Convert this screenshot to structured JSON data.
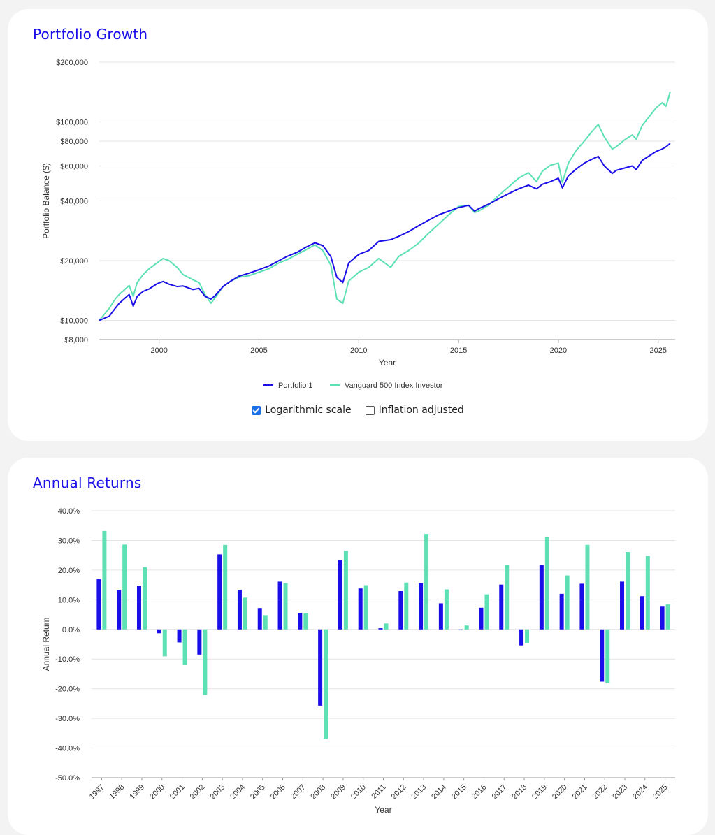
{
  "growth": {
    "title": "Portfolio Growth",
    "options": {
      "log_scale_label": "Logarithmic scale",
      "log_scale_checked": true,
      "inflation_label": "Inflation adjusted",
      "inflation_checked": false
    }
  },
  "returns": {
    "title": "Annual Returns"
  },
  "colors": {
    "portfolio": "#1a0fe8",
    "benchmark": "#5ee0b5",
    "title": "#1a0fe8",
    "checkbox": "#1a6fe8"
  },
  "chart_data": [
    {
      "type": "line",
      "ylabel": "Portfolio Balance ($)",
      "xlabel": "Year",
      "yscale": "log",
      "ylim": [
        8000,
        200000
      ],
      "xlim": [
        1997.0,
        2025.85
      ],
      "y_ticks": [
        "$8,000",
        "$10,000",
        "$20,000",
        "$40,000",
        "$60,000",
        "$80,000",
        "$100,000",
        "$200,000"
      ],
      "y_tick_values": [
        8000,
        10000,
        20000,
        40000,
        60000,
        80000,
        100000,
        200000
      ],
      "x_ticks": [
        "2000",
        "2005",
        "2010",
        "2015",
        "2020",
        "2025"
      ],
      "x_tick_values": [
        2000,
        2005,
        2010,
        2015,
        2020,
        2025
      ],
      "legend": "bottom-center",
      "grid": true,
      "series": [
        {
          "name": "Portfolio 1",
          "x": [
            1997.0,
            1997.5,
            1997.8,
            1998.0,
            1998.5,
            1998.7,
            1998.9,
            1999.2,
            1999.5,
            1999.9,
            2000.2,
            2000.5,
            2000.9,
            2001.2,
            2001.7,
            2002.0,
            2002.3,
            2002.6,
            2002.8,
            2003.2,
            2003.6,
            2004.0,
            2004.5,
            2005.0,
            2005.5,
            2006.0,
            2006.4,
            2006.9,
            2007.4,
            2007.8,
            2008.2,
            2008.6,
            2008.9,
            2009.2,
            2009.5,
            2010.0,
            2010.5,
            2011.0,
            2011.6,
            2012.0,
            2012.5,
            2013.0,
            2013.5,
            2014.0,
            2014.5,
            2015.0,
            2015.5,
            2015.8,
            2016.0,
            2016.5,
            2017.0,
            2017.5,
            2018.0,
            2018.5,
            2018.9,
            2019.2,
            2019.6,
            2020.0,
            2020.2,
            2020.5,
            2020.9,
            2021.3,
            2021.7,
            2022.0,
            2022.3,
            2022.7,
            2022.9,
            2023.3,
            2023.7,
            2023.9,
            2024.2,
            2024.6,
            2024.9,
            2025.2,
            2025.4,
            2025.6
          ],
          "values": [
            10000,
            10500,
            11500,
            12200,
            13500,
            11800,
            13200,
            14000,
            14400,
            15300,
            15700,
            15200,
            14800,
            14900,
            14300,
            14500,
            13200,
            12800,
            13300,
            14800,
            15800,
            16700,
            17300,
            18000,
            18800,
            20000,
            21000,
            22000,
            23500,
            24600,
            23800,
            21000,
            16500,
            15500,
            19500,
            21500,
            22500,
            25000,
            25500,
            26500,
            28000,
            30000,
            32000,
            34000,
            35500,
            37000,
            38000,
            35500,
            36500,
            38500,
            41000,
            43500,
            46000,
            48000,
            46000,
            48500,
            50000,
            52000,
            46500,
            53500,
            58000,
            62000,
            65000,
            67000,
            60000,
            55000,
            57000,
            58500,
            60000,
            57500,
            64000,
            68000,
            71000,
            73000,
            75000,
            78000
          ]
        },
        {
          "name": "Vanguard 500 Index Investor",
          "x": [
            1997.0,
            1997.5,
            1997.8,
            1998.0,
            1998.5,
            1998.7,
            1998.9,
            1999.2,
            1999.5,
            1999.9,
            2000.2,
            2000.5,
            2000.9,
            2001.2,
            2001.7,
            2002.0,
            2002.3,
            2002.6,
            2002.8,
            2003.2,
            2003.6,
            2004.0,
            2004.5,
            2005.0,
            2005.5,
            2006.0,
            2006.4,
            2006.9,
            2007.4,
            2007.8,
            2008.2,
            2008.6,
            2008.9,
            2009.2,
            2009.5,
            2010.0,
            2010.5,
            2011.0,
            2011.6,
            2012.0,
            2012.5,
            2013.0,
            2013.5,
            2014.0,
            2014.5,
            2015.0,
            2015.5,
            2015.8,
            2016.0,
            2016.5,
            2017.0,
            2017.5,
            2018.0,
            2018.5,
            2018.9,
            2019.2,
            2019.6,
            2020.0,
            2020.2,
            2020.5,
            2020.9,
            2021.3,
            2021.7,
            2022.0,
            2022.3,
            2022.7,
            2022.9,
            2023.3,
            2023.7,
            2023.9,
            2024.2,
            2024.6,
            2024.9,
            2025.2,
            2025.4,
            2025.6
          ],
          "values": [
            10000,
            11500,
            12800,
            13500,
            15000,
            13200,
            15500,
            17000,
            18200,
            19500,
            20500,
            20000,
            18500,
            17000,
            16000,
            15500,
            13500,
            12200,
            13000,
            14800,
            15800,
            16500,
            16800,
            17500,
            18200,
            19500,
            20200,
            21500,
            22800,
            24000,
            22500,
            19000,
            12800,
            12200,
            15800,
            17500,
            18500,
            20500,
            18500,
            21000,
            22500,
            24500,
            27500,
            30500,
            34000,
            37500,
            38000,
            35000,
            35500,
            38000,
            42500,
            47000,
            52000,
            55500,
            50000,
            56500,
            60500,
            62000,
            49500,
            62000,
            72000,
            80000,
            90000,
            97000,
            84000,
            73000,
            75000,
            81000,
            86000,
            82000,
            96000,
            108000,
            118000,
            125000,
            120000,
            142000
          ]
        }
      ]
    },
    {
      "type": "bar",
      "ylabel": "Annual Return",
      "xlabel": "Year",
      "ylim": [
        -50,
        40
      ],
      "y_ticks": [
        "40.0%",
        "30.0%",
        "20.0%",
        "10.0%",
        "0.0%",
        "-10.0%",
        "-20.0%",
        "-30.0%",
        "-40.0%",
        "-50.0%"
      ],
      "y_tick_values": [
        40,
        30,
        20,
        10,
        0,
        -10,
        -20,
        -30,
        -40,
        -50
      ],
      "grid": true,
      "categories": [
        "1997",
        "1998",
        "1999",
        "2000",
        "2001",
        "2002",
        "2003",
        "2004",
        "2005",
        "2006",
        "2007",
        "2008",
        "2009",
        "2010",
        "2011",
        "2012",
        "2013",
        "2014",
        "2015",
        "2016",
        "2017",
        "2018",
        "2019",
        "2020",
        "2021",
        "2022",
        "2023",
        "2024",
        "2025"
      ],
      "series": [
        {
          "name": "Portfolio 1",
          "values": [
            16.9,
            13.3,
            14.7,
            -1.3,
            -4.4,
            -8.5,
            25.3,
            13.3,
            7.2,
            16.1,
            5.6,
            -25.7,
            23.4,
            13.8,
            0.4,
            12.9,
            15.6,
            8.8,
            -0.3,
            7.3,
            15.1,
            -5.4,
            21.8,
            12.0,
            15.4,
            -17.6,
            16.1,
            11.2,
            7.9
          ]
        },
        {
          "name": "Vanguard 500 Index Investor",
          "values": [
            33.2,
            28.6,
            21.0,
            -9.1,
            -12.0,
            -22.1,
            28.5,
            10.7,
            4.8,
            15.6,
            5.4,
            -37.0,
            26.5,
            14.9,
            2.0,
            15.8,
            32.2,
            13.5,
            1.3,
            11.8,
            21.7,
            -4.5,
            31.3,
            18.2,
            28.5,
            -18.2,
            26.1,
            24.8,
            8.4
          ]
        }
      ]
    }
  ]
}
